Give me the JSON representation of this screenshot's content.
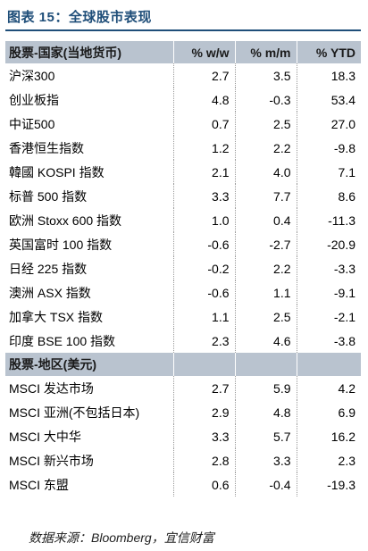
{
  "title": "图表 15：全球股市表现",
  "section1": {
    "header": "股票-国家(当地货币)",
    "columns": [
      "% w/w",
      "% m/m",
      "% YTD"
    ],
    "rows": [
      {
        "name": "沪深300",
        "ww": "2.7",
        "mm": "3.5",
        "ytd": "18.3"
      },
      {
        "name": "创业板指",
        "ww": "4.8",
        "mm": "-0.3",
        "ytd": "53.4"
      },
      {
        "name": "中证500",
        "ww": "0.7",
        "mm": "2.5",
        "ytd": "27.0"
      },
      {
        "name": "香港恒生指数",
        "ww": "1.2",
        "mm": "2.2",
        "ytd": "-9.8"
      },
      {
        "name": "韓國 KOSPI 指数",
        "ww": "2.1",
        "mm": "4.0",
        "ytd": "7.1"
      },
      {
        "name": "标普 500 指数",
        "ww": "3.3",
        "mm": "7.7",
        "ytd": "8.6"
      },
      {
        "name": "欧洲 Stoxx 600 指数",
        "ww": "1.0",
        "mm": "0.4",
        "ytd": "-11.3"
      },
      {
        "name": "英国富时 100 指数",
        "ww": "-0.6",
        "mm": "-2.7",
        "ytd": "-20.9"
      },
      {
        "name": "日经 225 指数",
        "ww": "-0.2",
        "mm": "2.2",
        "ytd": "-3.3"
      },
      {
        "name": "澳洲 ASX 指数",
        "ww": "-0.6",
        "mm": "1.1",
        "ytd": "-9.1"
      },
      {
        "name": "加拿大 TSX 指数",
        "ww": "1.1",
        "mm": "2.5",
        "ytd": "-2.1"
      },
      {
        "name": "印度 BSE 100 指数",
        "ww": "2.3",
        "mm": "4.6",
        "ytd": "-3.8"
      }
    ]
  },
  "section2": {
    "header": "股票-地区(美元)",
    "rows": [
      {
        "name": "MSCI 发达市场",
        "ww": "2.7",
        "mm": "5.9",
        "ytd": "4.2"
      },
      {
        "name": "MSCI 亚洲(不包括日本)",
        "ww": "2.9",
        "mm": "4.8",
        "ytd": "6.9"
      },
      {
        "name": "MSCI 大中华",
        "ww": "3.3",
        "mm": "5.7",
        "ytd": "16.2"
      },
      {
        "name": "MSCI 新兴市场",
        "ww": "2.8",
        "mm": "3.3",
        "ytd": "2.3"
      },
      {
        "name": "MSCI 东盟",
        "ww": "0.6",
        "mm": "-0.4",
        "ytd": "-19.3"
      }
    ]
  },
  "source": "数据来源：Bloomberg，宜信财富"
}
